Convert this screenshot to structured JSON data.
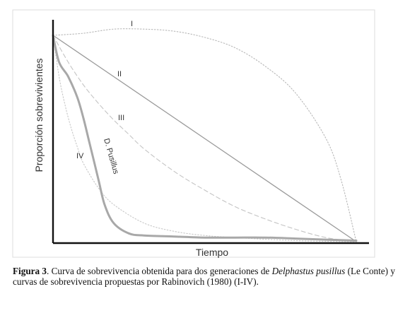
{
  "chart_data": {
    "type": "line",
    "xlabel": "Tiempo",
    "ylabel": "Proporción sobrevivientes",
    "xlim": [
      0,
      1
    ],
    "ylim": [
      0,
      1
    ],
    "grid": false,
    "series": [
      {
        "name": "I",
        "color": "#b8b8b8",
        "style": "dotted",
        "x": [
          0,
          0.1,
          0.2,
          0.3,
          0.4,
          0.5,
          0.6,
          0.7,
          0.8,
          0.9,
          0.95,
          1.0
        ],
        "y": [
          1,
          1.01,
          1.03,
          1.03,
          1.02,
          0.99,
          0.94,
          0.85,
          0.72,
          0.5,
          0.3,
          0.0
        ]
      },
      {
        "name": "II",
        "color": "#9a9a9a",
        "style": "solid",
        "x": [
          0,
          1.0
        ],
        "y": [
          1,
          0.0
        ]
      },
      {
        "name": "III",
        "color": "#c4c4c4",
        "style": "dashed",
        "x": [
          0,
          0.05,
          0.1,
          0.15,
          0.2,
          0.25,
          0.3,
          0.4,
          0.5,
          0.6,
          0.7,
          0.8,
          0.9,
          1.0
        ],
        "y": [
          1,
          0.87,
          0.76,
          0.67,
          0.59,
          0.52,
          0.45,
          0.34,
          0.25,
          0.17,
          0.11,
          0.06,
          0.02,
          0.0
        ]
      },
      {
        "name": "IV",
        "color": "#c8c8c8",
        "style": "dotted",
        "x": [
          0,
          0.02,
          0.04,
          0.06,
          0.08,
          0.1,
          0.15,
          0.2,
          0.3,
          0.4,
          0.5,
          0.6,
          0.8,
          1.0
        ],
        "y": [
          1,
          0.8,
          0.66,
          0.55,
          0.46,
          0.38,
          0.26,
          0.18,
          0.09,
          0.05,
          0.03,
          0.02,
          0.005,
          0.0
        ]
      },
      {
        "name": "D. Pusillus",
        "color": "#a8a8a8",
        "style": "solid-thick",
        "x": [
          0,
          0.02,
          0.05,
          0.08,
          0.1,
          0.12,
          0.15,
          0.17,
          0.2,
          0.25,
          0.3,
          0.4,
          0.5,
          0.6,
          0.7,
          0.8,
          0.9,
          1.0
        ],
        "y": [
          1,
          0.87,
          0.8,
          0.7,
          0.6,
          0.48,
          0.3,
          0.18,
          0.09,
          0.04,
          0.03,
          0.025,
          0.02,
          0.02,
          0.02,
          0.015,
          0.01,
          0.005
        ]
      }
    ],
    "annotations": [
      "I",
      "II",
      "III",
      "IV",
      "D. Pusillus"
    ]
  },
  "caption": {
    "label": "Figura 3",
    "text_1": ". Curva de sobrevivencia obtenida para dos generaciones de ",
    "species": "Delphastus pusillus",
    "text_2": " (Le Conte) y curvas de sobrevivencia propuestas por Rabinovich (1980) (I-IV)."
  }
}
